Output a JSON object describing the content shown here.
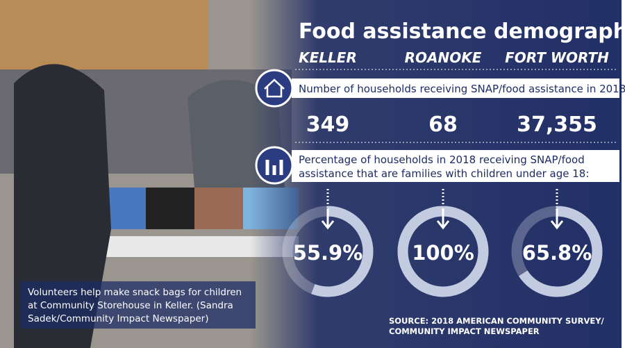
{
  "header": {
    "title": "Food assistance demographics"
  },
  "cities": [
    {
      "name": "KELLER",
      "households": "349",
      "percent": {
        "value": 55.9,
        "label": "55.9%"
      }
    },
    {
      "name": "ROANOKE",
      "households": "68",
      "percent": {
        "value": 100,
        "label": "100%"
      }
    },
    {
      "name": "FORT WORTH",
      "households": "37,355",
      "percent": {
        "value": 65.8,
        "label": "65.8%"
      }
    }
  ],
  "questions": [
    "Number of households receiving SNAP/food assistance in 2018:",
    "Percentage of households in 2018 receiving SNAP/food",
    "assistance that are families with children under age 18:"
  ],
  "caption": [
    "Volunteers help make snack bags for children",
    "at Community Storehouse in Keller. (Sandra",
    "Sadek/Community Impact Newspaper)"
  ],
  "source": [
    "SOURCE: 2018 AMERICAN COMMUNITY SURVEY/",
    "COMMUNITY IMPACT NEWSPAPER"
  ]
}
